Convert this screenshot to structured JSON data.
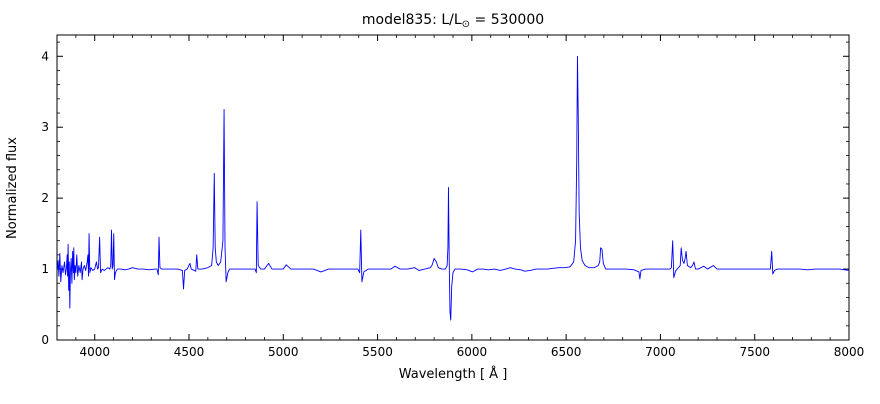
{
  "title": {
    "prefix": "model835: L/L",
    "sub": "⊙",
    "suffix": " = 530000"
  },
  "chart_data": {
    "type": "line",
    "title": "model835: L/L⊙ = 530000",
    "xlabel": "Wavelength [ Å ]",
    "ylabel": "Normalized flux",
    "xlim": [
      3800,
      8000
    ],
    "ylim": [
      0,
      4.3
    ],
    "xticks": [
      4000,
      4500,
      5000,
      5500,
      6000,
      6500,
      7000,
      7500,
      8000
    ],
    "yticks": [
      0,
      1,
      2,
      3,
      4
    ],
    "x_minor_step": 100,
    "y_minor_step": 0.2,
    "grid": false,
    "legend": "none",
    "line_color": "#0000ff",
    "axes_color": "#000000",
    "background_color": "#ffffff",
    "series": [
      {
        "name": "normalized-spectrum",
        "points": [
          [
            3802,
            1.0
          ],
          [
            3806,
            1.12
          ],
          [
            3810,
            0.9
          ],
          [
            3815,
            1.22
          ],
          [
            3820,
            0.82
          ],
          [
            3826,
            1.05
          ],
          [
            3832,
            0.95
          ],
          [
            3840,
            1.1
          ],
          [
            3845,
            0.92
          ],
          [
            3850,
            1.02
          ],
          [
            3854,
            1.2
          ],
          [
            3856,
            0.9
          ],
          [
            3859,
            1.35
          ],
          [
            3862,
            0.7
          ],
          [
            3865,
            1.1
          ],
          [
            3868,
            0.45
          ],
          [
            3871,
            0.95
          ],
          [
            3875,
            1.15
          ],
          [
            3879,
            0.8
          ],
          [
            3883,
            1.25
          ],
          [
            3887,
            0.95
          ],
          [
            3889,
            1.3
          ],
          [
            3892,
            0.85
          ],
          [
            3896,
            1.05
          ],
          [
            3900,
            0.95
          ],
          [
            3905,
            1.2
          ],
          [
            3910,
            0.9
          ],
          [
            3916,
            1.05
          ],
          [
            3923,
            0.95
          ],
          [
            3930,
            1.1
          ],
          [
            3933,
            0.85
          ],
          [
            3938,
            1.0
          ],
          [
            3945,
            1.05
          ],
          [
            3952,
            0.98
          ],
          [
            3960,
            1.1
          ],
          [
            3964,
            1.2
          ],
          [
            3967,
            0.9
          ],
          [
            3970,
            1.5
          ],
          [
            3974,
            0.95
          ],
          [
            3980,
            1.02
          ],
          [
            3990,
            0.98
          ],
          [
            4000,
            1.0
          ],
          [
            4009,
            1.1
          ],
          [
            4015,
            1.0
          ],
          [
            4020,
            1.02
          ],
          [
            4026,
            1.45
          ],
          [
            4031,
            0.95
          ],
          [
            4040,
            1.0
          ],
          [
            4050,
            0.98
          ],
          [
            4060,
            1.0
          ],
          [
            4070,
            1.02
          ],
          [
            4080,
            1.0
          ],
          [
            4085,
            1.05
          ],
          [
            4089,
            1.55
          ],
          [
            4093,
            1.0
          ],
          [
            4097,
            1.05
          ],
          [
            4101,
            1.5
          ],
          [
            4105,
            0.85
          ],
          [
            4110,
            0.95
          ],
          [
            4120,
            1.0
          ],
          [
            4140,
            1.0
          ],
          [
            4160,
            0.99
          ],
          [
            4180,
            1.0
          ],
          [
            4200,
            1.02
          ],
          [
            4230,
            1.0
          ],
          [
            4260,
            1.0
          ],
          [
            4290,
            0.99
          ],
          [
            4320,
            1.0
          ],
          [
            4330,
            1.0
          ],
          [
            4337,
            0.92
          ],
          [
            4341,
            1.45
          ],
          [
            4346,
            1.02
          ],
          [
            4355,
            1.0
          ],
          [
            4380,
            1.0
          ],
          [
            4410,
            1.0
          ],
          [
            4440,
            1.0
          ],
          [
            4465,
            0.98
          ],
          [
            4471,
            0.72
          ],
          [
            4477,
            0.98
          ],
          [
            4490,
            1.0
          ],
          [
            4505,
            1.08
          ],
          [
            4512,
            1.0
          ],
          [
            4536,
            0.97
          ],
          [
            4541,
            1.2
          ],
          [
            4547,
            1.0
          ],
          [
            4570,
            1.0
          ],
          [
            4600,
            1.02
          ],
          [
            4620,
            1.05
          ],
          [
            4628,
            1.3
          ],
          [
            4634,
            2.35
          ],
          [
            4639,
            1.3
          ],
          [
            4645,
            1.1
          ],
          [
            4655,
            1.05
          ],
          [
            4668,
            1.1
          ],
          [
            4680,
            1.4
          ],
          [
            4686,
            3.25
          ],
          [
            4691,
            1.3
          ],
          [
            4697,
            0.82
          ],
          [
            4706,
            0.95
          ],
          [
            4715,
            1.0
          ],
          [
            4740,
            1.0
          ],
          [
            4770,
            1.0
          ],
          [
            4800,
            1.0
          ],
          [
            4830,
            1.0
          ],
          [
            4850,
            1.0
          ],
          [
            4857,
            0.95
          ],
          [
            4861,
            1.95
          ],
          [
            4867,
            1.05
          ],
          [
            4880,
            1.0
          ],
          [
            4900,
            1.0
          ],
          [
            4922,
            1.08
          ],
          [
            4940,
            1.0
          ],
          [
            4970,
            1.0
          ],
          [
            5000,
            1.0
          ],
          [
            5016,
            1.06
          ],
          [
            5040,
            1.0
          ],
          [
            5080,
            1.0
          ],
          [
            5120,
            1.0
          ],
          [
            5160,
            1.0
          ],
          [
            5200,
            0.96
          ],
          [
            5240,
            1.0
          ],
          [
            5280,
            1.0
          ],
          [
            5320,
            1.0
          ],
          [
            5360,
            1.0
          ],
          [
            5395,
            1.0
          ],
          [
            5405,
            0.95
          ],
          [
            5411,
            1.55
          ],
          [
            5417,
            0.82
          ],
          [
            5427,
            0.96
          ],
          [
            5450,
            1.0
          ],
          [
            5490,
            1.0
          ],
          [
            5530,
            1.0
          ],
          [
            5570,
            1.0
          ],
          [
            5592,
            1.04
          ],
          [
            5620,
            1.0
          ],
          [
            5660,
            1.0
          ],
          [
            5696,
            1.02
          ],
          [
            5720,
            0.98
          ],
          [
            5750,
            1.0
          ],
          [
            5780,
            1.02
          ],
          [
            5790,
            1.06
          ],
          [
            5800,
            1.15
          ],
          [
            5812,
            1.1
          ],
          [
            5822,
            1.02
          ],
          [
            5840,
            1.0
          ],
          [
            5860,
            1.0
          ],
          [
            5869,
            1.05
          ],
          [
            5873,
            1.3
          ],
          [
            5876,
            2.15
          ],
          [
            5880,
            1.1
          ],
          [
            5884,
            0.4
          ],
          [
            5888,
            0.28
          ],
          [
            5893,
            0.75
          ],
          [
            5900,
            0.95
          ],
          [
            5910,
            1.0
          ],
          [
            5940,
            1.0
          ],
          [
            5975,
            0.99
          ],
          [
            6004,
            0.96
          ],
          [
            6030,
            1.0
          ],
          [
            6060,
            1.0
          ],
          [
            6090,
            0.99
          ],
          [
            6120,
            1.0
          ],
          [
            6150,
            0.98
          ],
          [
            6180,
            1.0
          ],
          [
            6203,
            1.02
          ],
          [
            6230,
            1.0
          ],
          [
            6260,
            0.99
          ],
          [
            6280,
            0.97
          ],
          [
            6310,
            0.98
          ],
          [
            6340,
            1.0
          ],
          [
            6370,
            1.0
          ],
          [
            6400,
            1.0
          ],
          [
            6430,
            1.01
          ],
          [
            6460,
            1.02
          ],
          [
            6490,
            1.02
          ],
          [
            6520,
            1.03
          ],
          [
            6540,
            1.1
          ],
          [
            6550,
            1.4
          ],
          [
            6556,
            2.5
          ],
          [
            6560,
            4.0
          ],
          [
            6564,
            3.2
          ],
          [
            6569,
            1.8
          ],
          [
            6576,
            1.3
          ],
          [
            6585,
            1.12
          ],
          [
            6600,
            1.05
          ],
          [
            6620,
            1.02
          ],
          [
            6650,
            1.02
          ],
          [
            6670,
            1.05
          ],
          [
            6678,
            1.1
          ],
          [
            6683,
            1.3
          ],
          [
            6690,
            1.28
          ],
          [
            6697,
            1.08
          ],
          [
            6710,
            1.0
          ],
          [
            6740,
            1.0
          ],
          [
            6780,
            1.0
          ],
          [
            6820,
            1.0
          ],
          [
            6860,
            0.99
          ],
          [
            6886,
            0.96
          ],
          [
            6891,
            0.86
          ],
          [
            6897,
            0.98
          ],
          [
            6920,
            1.0
          ],
          [
            6960,
            1.0
          ],
          [
            7000,
            1.0
          ],
          [
            7030,
            1.0
          ],
          [
            7050,
            1.0
          ],
          [
            7058,
            1.02
          ],
          [
            7065,
            1.4
          ],
          [
            7071,
            0.88
          ],
          [
            7080,
            0.97
          ],
          [
            7095,
            1.02
          ],
          [
            7105,
            1.05
          ],
          [
            7110,
            1.3
          ],
          [
            7117,
            1.12
          ],
          [
            7125,
            1.08
          ],
          [
            7131,
            1.15
          ],
          [
            7136,
            1.25
          ],
          [
            7143,
            1.05
          ],
          [
            7160,
            1.02
          ],
          [
            7170,
            1.05
          ],
          [
            7178,
            1.1
          ],
          [
            7186,
            1.0
          ],
          [
            7200,
            1.0
          ],
          [
            7230,
            1.04
          ],
          [
            7250,
            1.0
          ],
          [
            7281,
            1.05
          ],
          [
            7300,
            1.0
          ],
          [
            7340,
            1.0
          ],
          [
            7380,
            1.0
          ],
          [
            7420,
            1.0
          ],
          [
            7460,
            1.0
          ],
          [
            7500,
            1.0
          ],
          [
            7540,
            1.0
          ],
          [
            7570,
            1.0
          ],
          [
            7583,
            1.0
          ],
          [
            7590,
            1.25
          ],
          [
            7596,
            0.93
          ],
          [
            7605,
            0.98
          ],
          [
            7620,
            1.0
          ],
          [
            7660,
            1.0
          ],
          [
            7700,
            1.0
          ],
          [
            7740,
            1.0
          ],
          [
            7780,
            0.99
          ],
          [
            7820,
            1.0
          ],
          [
            7860,
            1.0
          ],
          [
            7900,
            1.0
          ],
          [
            7950,
            1.0
          ],
          [
            8000,
            0.98
          ]
        ]
      }
    ]
  }
}
